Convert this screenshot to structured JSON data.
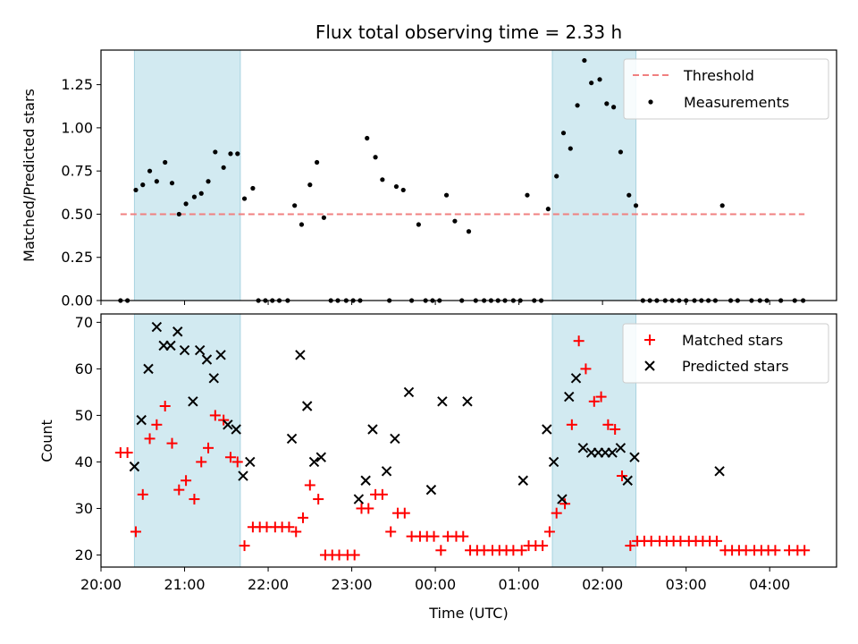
{
  "chart_data": [
    {
      "type": "scatter",
      "title": "Flux total observing time = 2.33 h",
      "xlabel": "",
      "ylabel": "Matched/Predicted stars",
      "xlim": [
        "20:00",
        "04:48"
      ],
      "ylim": [
        0,
        1.45
      ],
      "yticks": [
        0.0,
        0.25,
        0.5,
        0.75,
        1.0,
        1.25
      ],
      "ytick_labels": [
        "0.00",
        "0.25",
        "0.50",
        "0.75",
        "1.00",
        "1.25"
      ],
      "xticks": [
        "20:00",
        "21:00",
        "22:00",
        "23:00",
        "00:00",
        "01:00",
        "02:00",
        "03:00",
        "04:00"
      ],
      "legend": [
        "Threshold",
        "Measurements"
      ],
      "legend_position": "upper right",
      "shaded_intervals": [
        [
          "20:24",
          "21:40"
        ],
        [
          "01:24",
          "02:24"
        ]
      ],
      "threshold": {
        "label": "Threshold",
        "value": 0.5,
        "x_start": "20:14",
        "x_end": "04:25",
        "color": "#f08080"
      },
      "series": [
        {
          "name": "Measurements",
          "color": "#000000",
          "points": [
            [
              "20:14",
              0.0
            ],
            [
              "20:19",
              0.0
            ],
            [
              "20:25",
              0.64
            ],
            [
              "20:30",
              0.67
            ],
            [
              "20:35",
              0.75
            ],
            [
              "20:40",
              0.69
            ],
            [
              "20:46",
              0.8
            ],
            [
              "20:51",
              0.68
            ],
            [
              "20:56",
              0.5
            ],
            [
              "21:01",
              0.56
            ],
            [
              "21:07",
              0.6
            ],
            [
              "21:12",
              0.62
            ],
            [
              "21:17",
              0.69
            ],
            [
              "21:22",
              0.86
            ],
            [
              "21:28",
              0.77
            ],
            [
              "21:33",
              0.85
            ],
            [
              "21:38",
              0.85
            ],
            [
              "21:43",
              0.59
            ],
            [
              "21:49",
              0.65
            ],
            [
              "21:53",
              0.0
            ],
            [
              "21:58",
              0.0
            ],
            [
              "22:03",
              0.0
            ],
            [
              "22:08",
              0.0
            ],
            [
              "22:14",
              0.0
            ],
            [
              "22:19",
              0.55
            ],
            [
              "22:24",
              0.44
            ],
            [
              "22:30",
              0.67
            ],
            [
              "22:35",
              0.8
            ],
            [
              "22:40",
              0.48
            ],
            [
              "22:45",
              0.0
            ],
            [
              "22:50",
              0.0
            ],
            [
              "22:56",
              0.0
            ],
            [
              "23:01",
              0.0
            ],
            [
              "23:06",
              0.0
            ],
            [
              "23:11",
              0.94
            ],
            [
              "23:17",
              0.83
            ],
            [
              "23:22",
              0.7
            ],
            [
              "23:27",
              0.0
            ],
            [
              "23:32",
              0.66
            ],
            [
              "23:37",
              0.64
            ],
            [
              "23:43",
              0.0
            ],
            [
              "23:48",
              0.44
            ],
            [
              "23:53",
              0.0
            ],
            [
              "23:58",
              0.0
            ],
            [
              "00:03",
              0.0
            ],
            [
              "00:08",
              0.61
            ],
            [
              "00:14",
              0.46
            ],
            [
              "00:19",
              0.0
            ],
            [
              "00:24",
              0.4
            ],
            [
              "00:29",
              0.0
            ],
            [
              "00:35",
              0.0
            ],
            [
              "00:40",
              0.0
            ],
            [
              "00:45",
              0.0
            ],
            [
              "00:50",
              0.0
            ],
            [
              "00:56",
              0.0
            ],
            [
              "01:01",
              0.0
            ],
            [
              "01:06",
              0.61
            ],
            [
              "01:11",
              0.0
            ],
            [
              "01:16",
              0.0
            ],
            [
              "01:21",
              0.53
            ],
            [
              "01:27",
              0.72
            ],
            [
              "01:32",
              0.97
            ],
            [
              "01:37",
              0.88
            ],
            [
              "01:42",
              1.13
            ],
            [
              "01:47",
              1.39
            ],
            [
              "01:52",
              1.26
            ],
            [
              "01:58",
              1.28
            ],
            [
              "02:03",
              1.14
            ],
            [
              "02:08",
              1.12
            ],
            [
              "02:13",
              0.86
            ],
            [
              "02:19",
              0.61
            ],
            [
              "02:24",
              0.55
            ],
            [
              "02:29",
              0.0
            ],
            [
              "02:34",
              0.0
            ],
            [
              "02:39",
              0.0
            ],
            [
              "02:45",
              0.0
            ],
            [
              "02:50",
              0.0
            ],
            [
              "02:55",
              0.0
            ],
            [
              "03:00",
              0.0
            ],
            [
              "03:06",
              0.0
            ],
            [
              "03:11",
              0.0
            ],
            [
              "03:16",
              0.0
            ],
            [
              "03:21",
              0.0
            ],
            [
              "03:26",
              0.55
            ],
            [
              "03:32",
              0.0
            ],
            [
              "03:37",
              0.0
            ],
            [
              "03:47",
              0.0
            ],
            [
              "03:53",
              0.0
            ],
            [
              "03:58",
              0.0
            ],
            [
              "04:08",
              0.0
            ],
            [
              "04:18",
              0.0
            ],
            [
              "04:24",
              0.0
            ]
          ]
        }
      ]
    },
    {
      "type": "scatter",
      "title": "",
      "xlabel": "Time (UTC)",
      "ylabel": "Count",
      "xlim": [
        "20:00",
        "04:48"
      ],
      "ylim": [
        17.4,
        71.8
      ],
      "yticks": [
        20,
        30,
        40,
        50,
        60,
        70
      ],
      "ytick_labels": [
        "20",
        "30",
        "40",
        "50",
        "60",
        "70"
      ],
      "xticks": [
        "20:00",
        "21:00",
        "22:00",
        "23:00",
        "00:00",
        "01:00",
        "02:00",
        "03:00",
        "04:00"
      ],
      "legend": [
        "Matched stars",
        "Predicted stars"
      ],
      "legend_position": "upper right",
      "shaded_intervals": [
        [
          "20:24",
          "21:40"
        ],
        [
          "01:24",
          "02:24"
        ]
      ],
      "series": [
        {
          "name": "Matched stars",
          "marker": "+",
          "color": "#ff0000",
          "points": [
            [
              "20:14",
              42
            ],
            [
              "20:19",
              42
            ],
            [
              "20:25",
              25
            ],
            [
              "20:30",
              33
            ],
            [
              "20:35",
              45
            ],
            [
              "20:40",
              48
            ],
            [
              "20:46",
              52
            ],
            [
              "20:51",
              44
            ],
            [
              "20:56",
              34
            ],
            [
              "21:01",
              36
            ],
            [
              "21:07",
              32
            ],
            [
              "21:12",
              40
            ],
            [
              "21:17",
              43
            ],
            [
              "21:22",
              50
            ],
            [
              "21:28",
              49
            ],
            [
              "21:33",
              41
            ],
            [
              "21:38",
              40
            ],
            [
              "21:43",
              22
            ],
            [
              "21:49",
              26
            ],
            [
              "21:54",
              26
            ],
            [
              "21:59",
              26
            ],
            [
              "22:05",
              26
            ],
            [
              "22:10",
              26
            ],
            [
              "22:15",
              26
            ],
            [
              "22:20",
              25
            ],
            [
              "22:25",
              28
            ],
            [
              "22:30",
              35
            ],
            [
              "22:36",
              32
            ],
            [
              "22:41",
              20
            ],
            [
              "22:46",
              20
            ],
            [
              "22:51",
              20
            ],
            [
              "22:57",
              20
            ],
            [
              "23:02",
              20
            ],
            [
              "23:07",
              30
            ],
            [
              "23:12",
              30
            ],
            [
              "23:17",
              33
            ],
            [
              "23:22",
              33
            ],
            [
              "23:28",
              25
            ],
            [
              "23:33",
              29
            ],
            [
              "23:38",
              29
            ],
            [
              "23:43",
              24
            ],
            [
              "23:49",
              24
            ],
            [
              "23:54",
              24
            ],
            [
              "23:59",
              24
            ],
            [
              "00:04",
              21
            ],
            [
              "00:09",
              24
            ],
            [
              "00:15",
              24
            ],
            [
              "00:20",
              24
            ],
            [
              "00:25",
              21
            ],
            [
              "00:30",
              21
            ],
            [
              "00:35",
              21
            ],
            [
              "00:41",
              21
            ],
            [
              "00:46",
              21
            ],
            [
              "00:51",
              21
            ],
            [
              "00:56",
              21
            ],
            [
              "01:02",
              21
            ],
            [
              "01:07",
              22
            ],
            [
              "01:12",
              22
            ],
            [
              "01:17",
              22
            ],
            [
              "01:22",
              25
            ],
            [
              "01:27",
              29
            ],
            [
              "01:33",
              31
            ],
            [
              "01:38",
              48
            ],
            [
              "01:43",
              66
            ],
            [
              "01:48",
              60
            ],
            [
              "01:54",
              53
            ],
            [
              "01:59",
              54
            ],
            [
              "02:04",
              48
            ],
            [
              "02:09",
              47
            ],
            [
              "02:14",
              37
            ],
            [
              "02:20",
              22
            ],
            [
              "02:25",
              23
            ],
            [
              "02:30",
              23
            ],
            [
              "02:35",
              23
            ],
            [
              "02:41",
              23
            ],
            [
              "02:46",
              23
            ],
            [
              "02:51",
              23
            ],
            [
              "02:56",
              23
            ],
            [
              "03:02",
              23
            ],
            [
              "03:07",
              23
            ],
            [
              "03:12",
              23
            ],
            [
              "03:17",
              23
            ],
            [
              "03:22",
              23
            ],
            [
              "03:28",
              21
            ],
            [
              "03:33",
              21
            ],
            [
              "03:38",
              21
            ],
            [
              "03:43",
              21
            ],
            [
              "03:49",
              21
            ],
            [
              "03:54",
              21
            ],
            [
              "03:59",
              21
            ],
            [
              "04:04",
              21
            ],
            [
              "04:14",
              21
            ],
            [
              "04:20",
              21
            ],
            [
              "04:25",
              21
            ]
          ]
        },
        {
          "name": "Predicted stars",
          "marker": "x",
          "color": "#000000",
          "points": [
            [
              "20:24",
              39
            ],
            [
              "20:29",
              49
            ],
            [
              "20:34",
              60
            ],
            [
              "20:40",
              69
            ],
            [
              "20:45",
              65
            ],
            [
              "20:50",
              65
            ],
            [
              "20:55",
              68
            ],
            [
              "21:00",
              64
            ],
            [
              "21:06",
              53
            ],
            [
              "21:11",
              64
            ],
            [
              "21:16",
              62
            ],
            [
              "21:21",
              58
            ],
            [
              "21:26",
              63
            ],
            [
              "21:31",
              48
            ],
            [
              "21:37",
              47
            ],
            [
              "21:42",
              37
            ],
            [
              "21:47",
              40
            ],
            [
              "22:17",
              45
            ],
            [
              "22:23",
              63
            ],
            [
              "22:28",
              52
            ],
            [
              "22:33",
              40
            ],
            [
              "22:38",
              41
            ],
            [
              "23:05",
              32
            ],
            [
              "23:10",
              36
            ],
            [
              "23:15",
              47
            ],
            [
              "23:25",
              38
            ],
            [
              "23:31",
              45
            ],
            [
              "23:41",
              55
            ],
            [
              "23:57",
              34
            ],
            [
              "00:05",
              53
            ],
            [
              "00:23",
              53
            ],
            [
              "01:03",
              36
            ],
            [
              "01:20",
              47
            ],
            [
              "01:25",
              40
            ],
            [
              "01:31",
              32
            ],
            [
              "01:36",
              54
            ],
            [
              "01:41",
              58
            ],
            [
              "01:46",
              43
            ],
            [
              "01:52",
              42
            ],
            [
              "01:57",
              42
            ],
            [
              "02:02",
              42
            ],
            [
              "02:07",
              42
            ],
            [
              "02:13",
              43
            ],
            [
              "02:18",
              36
            ],
            [
              "02:23",
              41
            ],
            [
              "03:24",
              38
            ]
          ]
        }
      ]
    }
  ]
}
